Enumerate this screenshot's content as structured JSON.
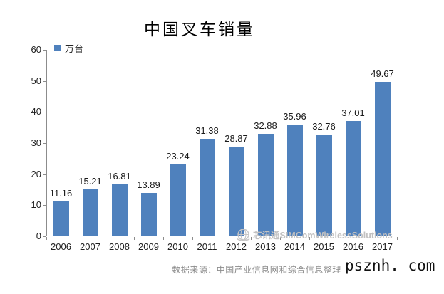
{
  "page": {
    "source_note": "数据来源：中国产业信息网和综合信息整理",
    "brand_watermark": "芯讯通SIMComWirelessSolutions",
    "site_watermark": "psznh. com"
  },
  "chart_data": {
    "type": "bar",
    "title": "中国叉车销量",
    "legend_label": "万台",
    "categories": [
      "2006",
      "2007",
      "2008",
      "2009",
      "2010",
      "2011",
      "2012",
      "2013",
      "2014",
      "2015",
      "2016",
      "2017"
    ],
    "values": [
      11.16,
      15.21,
      16.81,
      13.89,
      23.24,
      31.38,
      28.87,
      32.88,
      35.96,
      32.76,
      37.01,
      49.67
    ],
    "value_labels": [
      "11.16",
      "15.21",
      "16.81",
      "13.89",
      "23.24",
      "31.38",
      "28.87",
      "32.88",
      "35.96",
      "32.76",
      "37.01",
      "49.67"
    ],
    "ylim": [
      0,
      60
    ],
    "yticks": [
      0,
      10,
      20,
      30,
      40,
      50,
      60
    ],
    "xlabel": "",
    "ylabel": "",
    "grid": false,
    "legend_position": "top-left",
    "bar_color": "#4F81BD",
    "axis_color": "#8c8c8c"
  }
}
